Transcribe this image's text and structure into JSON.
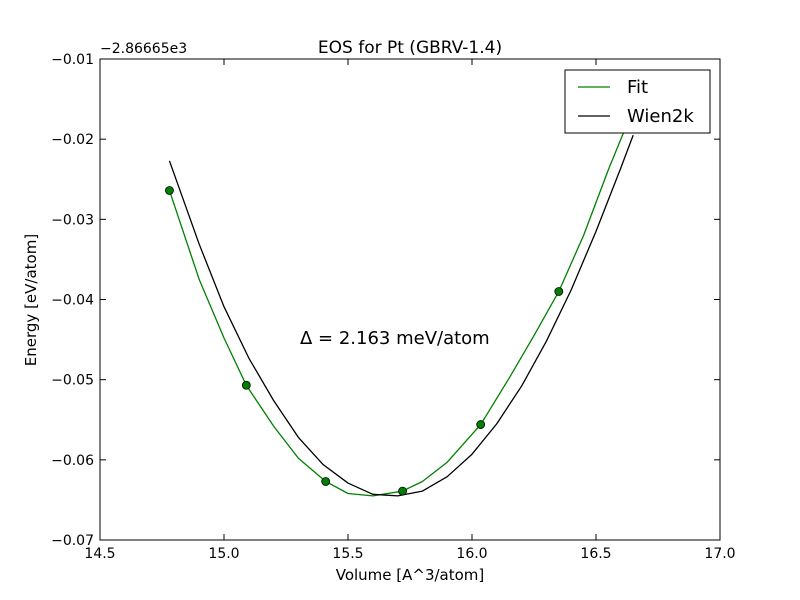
{
  "chart_data": {
    "type": "line",
    "title": "EOS for Pt (GBRV-1.4)",
    "xlabel": "Volume [A^3/atom]",
    "ylabel": "Energy [eV/atom]",
    "offset_label": "−2.86665e3",
    "xlim": [
      14.5,
      17.0
    ],
    "ylim": [
      -0.07,
      -0.01
    ],
    "x_ticks": [
      14.5,
      15.0,
      15.5,
      16.0,
      16.5,
      17.0
    ],
    "x_tick_labels": [
      "14.5",
      "15.0",
      "15.5",
      "16.0",
      "16.5",
      "17.0"
    ],
    "y_ticks": [
      -0.01,
      -0.02,
      -0.03,
      -0.04,
      -0.05,
      -0.06,
      -0.07
    ],
    "y_tick_labels": [
      "−0.01",
      "−0.02",
      "−0.03",
      "−0.04",
      "−0.05",
      "−0.06",
      "−0.07"
    ],
    "grid": false,
    "legend_position": "top-right",
    "annotation": "Δ = 2.163 meV/atom",
    "points": {
      "color": "#008000",
      "x": [
        14.78,
        15.09,
        15.41,
        15.72,
        16.035,
        16.35
      ],
      "y": [
        -0.0264,
        -0.0507,
        -0.0627,
        -0.0639,
        -0.0556,
        -0.039
      ]
    },
    "series": [
      {
        "name": "Fit",
        "color": "#008000",
        "x": [
          14.78,
          14.9,
          15.0,
          15.09,
          15.2,
          15.3,
          15.41,
          15.5,
          15.6,
          15.72,
          15.8,
          15.9,
          16.035,
          16.15,
          16.25,
          16.35,
          16.45,
          16.55,
          16.62
        ],
        "y": [
          -0.0264,
          -0.0375,
          -0.0448,
          -0.0507,
          -0.0558,
          -0.0598,
          -0.0627,
          -0.0642,
          -0.0645,
          -0.0639,
          -0.0627,
          -0.0603,
          -0.0556,
          -0.0498,
          -0.0445,
          -0.039,
          -0.032,
          -0.0238,
          -0.0185
        ]
      },
      {
        "name": "Wien2k",
        "color": "#000000",
        "x": [
          14.78,
          14.9,
          15.0,
          15.1,
          15.2,
          15.3,
          15.4,
          15.5,
          15.6,
          15.7,
          15.8,
          15.9,
          16.0,
          16.1,
          16.2,
          16.3,
          16.4,
          16.5,
          16.6,
          16.65
        ],
        "y": [
          -0.0227,
          -0.0331,
          -0.0409,
          -0.0473,
          -0.0526,
          -0.0572,
          -0.0606,
          -0.0629,
          -0.0643,
          -0.0645,
          -0.0639,
          -0.0621,
          -0.0593,
          -0.0555,
          -0.0508,
          -0.0452,
          -0.0388,
          -0.0315,
          -0.0236,
          -0.0195
        ]
      }
    ]
  }
}
